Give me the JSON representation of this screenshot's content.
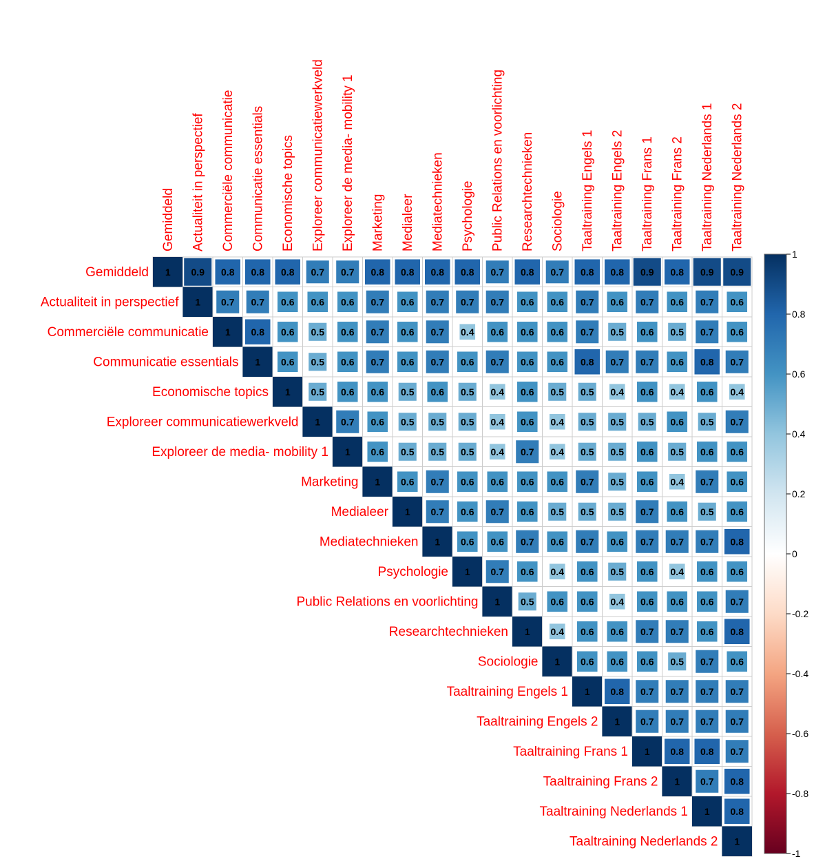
{
  "chart_data": {
    "type": "heatmap",
    "subtype": "upper-triangle correlation matrix",
    "variables": [
      "Gemiddeld",
      "Actualiteit in perspectief",
      "Commerciële communicatie",
      "Communicatie essentials",
      "Economische topics",
      "Exploreer communicatiewerkveld",
      "Exploreer de media- mobility 1",
      "Marketing",
      "Medialeer",
      "Mediatechnieken",
      "Psychologie",
      "Public Relations en voorlichting",
      "Researchtechnieken",
      "Sociologie",
      "Taaltraining Engels 1",
      "Taaltraining Engels 2",
      "Taaltraining Frans 1",
      "Taaltraining Frans 2",
      "Taaltraining Nederlands 1",
      "Taaltraining Nederlands 2"
    ],
    "upper_triangle_rows": [
      [
        1,
        0.9,
        0.8,
        0.8,
        0.8,
        0.7,
        0.7,
        0.8,
        0.8,
        0.8,
        0.8,
        0.7,
        0.8,
        0.7,
        0.8,
        0.8,
        0.9,
        0.8,
        0.9,
        0.9
      ],
      [
        1,
        0.7,
        0.7,
        0.6,
        0.6,
        0.6,
        0.7,
        0.6,
        0.7,
        0.7,
        0.7,
        0.6,
        0.6,
        0.7,
        0.6,
        0.7,
        0.6,
        0.7,
        0.6
      ],
      [
        1,
        0.8,
        0.6,
        0.5,
        0.6,
        0.7,
        0.6,
        0.7,
        0.4,
        0.6,
        0.6,
        0.6,
        0.7,
        0.5,
        0.6,
        0.5,
        0.7,
        0.6
      ],
      [
        1,
        0.6,
        0.5,
        0.6,
        0.7,
        0.6,
        0.7,
        0.6,
        0.7,
        0.6,
        0.6,
        0.8,
        0.7,
        0.7,
        0.6,
        0.8,
        0.7
      ],
      [
        1,
        0.5,
        0.6,
        0.6,
        0.5,
        0.6,
        0.5,
        0.4,
        0.6,
        0.5,
        0.5,
        0.4,
        0.6,
        0.4,
        0.6,
        0.4
      ],
      [
        1,
        0.7,
        0.6,
        0.5,
        0.5,
        0.5,
        0.4,
        0.6,
        0.4,
        0.5,
        0.5,
        0.5,
        0.6,
        0.5,
        0.7
      ],
      [
        1,
        0.6,
        0.5,
        0.5,
        0.5,
        0.4,
        0.7,
        0.4,
        0.5,
        0.5,
        0.6,
        0.5,
        0.6,
        0.6
      ],
      [
        1,
        0.6,
        0.7,
        0.6,
        0.6,
        0.6,
        0.6,
        0.7,
        0.5,
        0.6,
        0.4,
        0.7,
        0.6
      ],
      [
        1,
        0.7,
        0.6,
        0.7,
        0.6,
        0.5,
        0.5,
        0.5,
        0.7,
        0.6,
        0.5,
        0.6
      ],
      [
        1,
        0.6,
        0.6,
        0.7,
        0.6,
        0.7,
        0.6,
        0.7,
        0.7,
        0.7,
        0.8
      ],
      [
        1,
        0.7,
        0.6,
        0.4,
        0.6,
        0.5,
        0.6,
        0.4,
        0.6,
        0.6
      ],
      [
        1,
        0.5,
        0.6,
        0.6,
        0.4,
        0.6,
        0.6,
        0.6,
        0.7
      ],
      [
        1,
        0.4,
        0.6,
        0.6,
        0.7,
        0.7,
        0.6,
        0.8
      ],
      [
        1,
        0.6,
        0.6,
        0.6,
        0.5,
        0.7,
        0.6
      ],
      [
        1,
        0.8,
        0.7,
        0.7,
        0.7,
        0.7
      ],
      [
        1,
        0.7,
        0.7,
        0.7,
        0.7
      ],
      [
        1,
        0.8,
        0.8,
        0.7
      ],
      [
        1,
        0.7,
        0.8
      ],
      [
        1,
        0.8
      ],
      [
        1
      ]
    ],
    "color_scale": {
      "range": [
        -1,
        1
      ],
      "tick_labels": [
        "1",
        "0.8",
        "0.6",
        "0.4",
        "0.2",
        "0",
        "-0.2",
        "-0.4",
        "-0.6",
        "-0.8",
        "-1"
      ],
      "stops": [
        {
          "value": -1,
          "color": "#67001f"
        },
        {
          "value": -0.8,
          "color": "#b2182b"
        },
        {
          "value": -0.6,
          "color": "#d6604d"
        },
        {
          "value": -0.4,
          "color": "#f4a582"
        },
        {
          "value": -0.2,
          "color": "#fddbc7"
        },
        {
          "value": 0,
          "color": "#ffffff"
        },
        {
          "value": 0.2,
          "color": "#d1e5f0"
        },
        {
          "value": 0.4,
          "color": "#92c5de"
        },
        {
          "value": 0.6,
          "color": "#4393c3"
        },
        {
          "value": 0.8,
          "color": "#2166ac"
        },
        {
          "value": 1,
          "color": "#053061"
        }
      ]
    },
    "label_color": "#ff0000",
    "legend_placement": "right",
    "grid": true
  }
}
